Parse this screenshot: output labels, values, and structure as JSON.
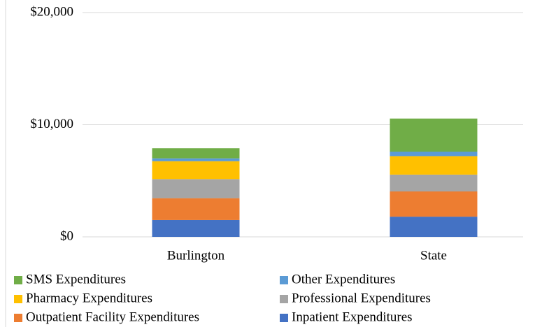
{
  "chart_data": {
    "type": "stacked_bar",
    "categories": [
      "Burlington",
      "State"
    ],
    "series": [
      {
        "name": "Inpatient Expenditures",
        "color": "#4472c4",
        "values": [
          1500,
          1800
        ]
      },
      {
        "name": "Outpatient Facility Expenditures",
        "color": "#ed7d31",
        "values": [
          1950,
          2250
        ]
      },
      {
        "name": "Professional Expenditures",
        "color": "#a5a5a5",
        "values": [
          1700,
          1500
        ]
      },
      {
        "name": "Pharmacy Expenditures",
        "color": "#ffc000",
        "values": [
          1600,
          1650
        ]
      },
      {
        "name": "Other Expenditures",
        "color": "#5b9bd5",
        "values": [
          250,
          400
        ]
      },
      {
        "name": "SMS Expenditures",
        "color": "#70ad47",
        "values": [
          900,
          2950
        ]
      }
    ],
    "ylim": [
      0,
      20000
    ],
    "yticks": [
      {
        "value": 0,
        "label": "$0"
      },
      {
        "value": 10000,
        "label": "$10,000"
      },
      {
        "value": 20000,
        "label": "$20,000"
      }
    ],
    "grid": true,
    "legend": "bottom"
  }
}
